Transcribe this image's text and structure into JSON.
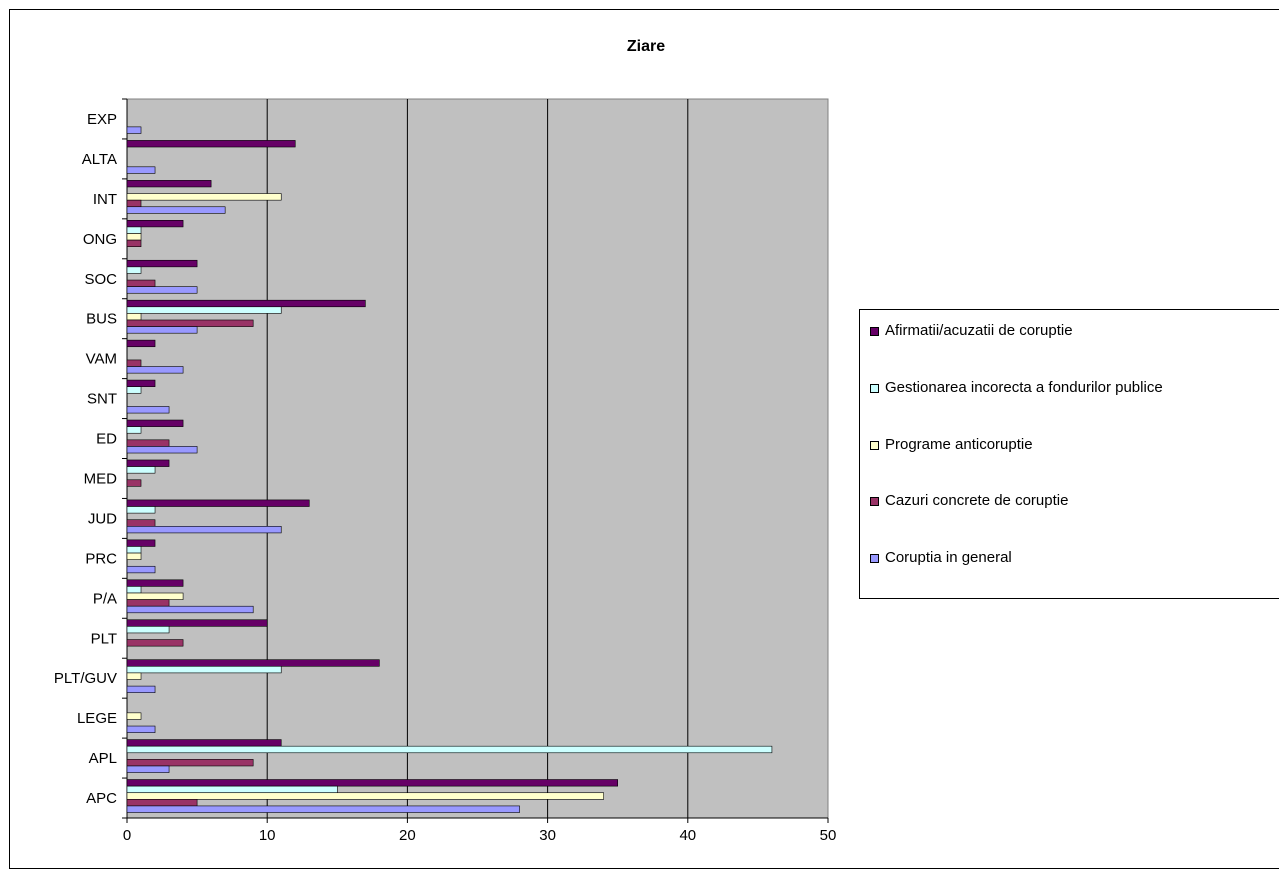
{
  "chart_data": {
    "type": "bar",
    "orientation": "horizontal",
    "title": "Ziare",
    "categories": [
      "APC",
      "APL",
      "LEGE",
      "PLT/GUV",
      "PLT",
      "P/A",
      "PRC",
      "JUD",
      "MED",
      "ED",
      "SNT",
      "VAM",
      "BUS",
      "SOC",
      "ONG",
      "INT",
      "ALTA",
      "EXP"
    ],
    "series": [
      {
        "name": "Coruptia in general",
        "color": "#9999ff",
        "values": [
          28,
          3,
          2,
          2,
          0,
          9,
          2,
          11,
          0,
          5,
          3,
          4,
          5,
          5,
          0,
          7,
          2,
          1
        ]
      },
      {
        "name": "Cazuri concrete de coruptie",
        "color": "#993366",
        "values": [
          5,
          9,
          0,
          0,
          4,
          3,
          0,
          2,
          1,
          3,
          0,
          1,
          9,
          2,
          1,
          1,
          0,
          0
        ]
      },
      {
        "name": "Programe anticoruptie",
        "color": "#ffffcc",
        "values": [
          34,
          0,
          1,
          1,
          0,
          4,
          1,
          0,
          0,
          0,
          0,
          0,
          1,
          0,
          1,
          11,
          0,
          0
        ]
      },
      {
        "name": "Gestionarea incorecta a fondurilor publice",
        "color": "#ccffff",
        "values": [
          15,
          46,
          0,
          11,
          3,
          1,
          1,
          2,
          2,
          1,
          1,
          0,
          11,
          1,
          1,
          0,
          0,
          0
        ]
      },
      {
        "name": "Afirmatii/acuzatii de coruptie",
        "color": "#660066",
        "values": [
          35,
          11,
          0,
          18,
          10,
          4,
          2,
          13,
          3,
          4,
          2,
          2,
          17,
          5,
          4,
          6,
          12,
          0
        ]
      }
    ],
    "xlim": [
      0,
      50
    ],
    "xticks": [
      0,
      10,
      20,
      30,
      40,
      50
    ],
    "grid": true,
    "plot_background": "#c0c0c0",
    "legend_position": "right",
    "legend_order": [
      "Afirmatii/acuzatii de coruptie",
      "Gestionarea incorecta a fondurilor publice",
      "Programe anticoruptie",
      "Cazuri concrete de coruptie",
      "Coruptia in general"
    ]
  }
}
